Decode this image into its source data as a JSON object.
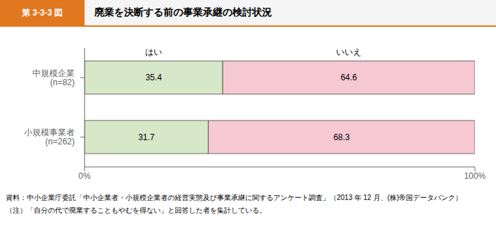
{
  "chart_data": {
    "type": "bar",
    "orientation": "horizontal",
    "stacked": true,
    "data_labels": true,
    "grid": false,
    "title": "廃業を決断する前の事業承継の検討状況",
    "annotations": [
      "第 3-3-3 図",
      "資料：中小企業庁委託「中小企業者・小規模企業者の経営実態及び事業承継に関するアンケート調査」（2013 年 12 月、(株)帝国データバンク）",
      "（注）「自分の代で廃業することもやむを得ない」と回答した者を集計している。"
    ],
    "categories": [
      "中規模企業\n(n=82)",
      "小規模事業者\n(n=262)"
    ],
    "series": [
      {
        "name": "はい",
        "color": "#d6e8c8",
        "values": [
          35.4,
          31.7
        ]
      },
      {
        "name": "いいえ",
        "color": "#f5c8d2",
        "values": [
          64.6,
          68.3
        ]
      }
    ],
    "xlim": [
      0,
      100
    ],
    "xticks": [
      {
        "value": 0,
        "label": "0%"
      },
      {
        "value": 100,
        "label": "100%"
      }
    ]
  }
}
